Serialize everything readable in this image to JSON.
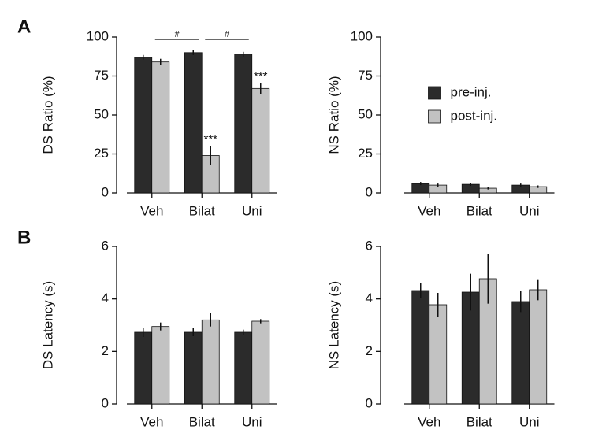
{
  "chart_data": [
    {
      "type": "bar",
      "panel_label": "A",
      "ylabel": "DS Ratio (%)",
      "categories": [
        "Veh",
        "Bilat",
        "Uni"
      ],
      "series": [
        {
          "color": "#2b2b2b",
          "values": [
            87,
            90,
            89
          ],
          "errors": [
            1.5,
            1.5,
            1.5
          ]
        },
        {
          "color": "#c2c2c2",
          "values": [
            84,
            24,
            67
          ],
          "errors": [
            2,
            6,
            3.5
          ],
          "annotations": [
            null,
            "***",
            "***"
          ]
        }
      ],
      "brackets": [
        {
          "text": "#",
          "from": "Veh",
          "to": "Bilat"
        },
        {
          "text": "#",
          "from": "Bilat",
          "to": "Uni"
        }
      ],
      "ylim": [
        0,
        100
      ],
      "yticks": [
        0,
        25,
        50,
        75,
        100
      ]
    },
    {
      "type": "bar",
      "ylabel": "NS Ratio (%)",
      "categories": [
        "Veh",
        "Bilat",
        "Uni"
      ],
      "series": [
        {
          "name": "pre-inj.",
          "color": "#2b2b2b",
          "values": [
            6,
            5.5,
            5
          ],
          "errors": [
            1,
            1,
            1
          ]
        },
        {
          "name": "post-inj.",
          "color": "#c2c2c2",
          "values": [
            5,
            3,
            4
          ],
          "errors": [
            1,
            0.8,
            0.8
          ]
        }
      ],
      "legend": "upper right",
      "ylim": [
        0,
        100
      ],
      "yticks": [
        0,
        25,
        50,
        75,
        100
      ]
    },
    {
      "type": "bar",
      "panel_label": "B",
      "ylabel": "DS Latency (s)",
      "categories": [
        "Veh",
        "Bilat",
        "Uni"
      ],
      "series": [
        {
          "color": "#2b2b2b",
          "values": [
            2.73,
            2.73,
            2.73
          ],
          "errors": [
            0.18,
            0.15,
            0.1
          ]
        },
        {
          "color": "#c2c2c2",
          "values": [
            2.95,
            3.2,
            3.15
          ],
          "errors": [
            0.15,
            0.25,
            0.08
          ]
        }
      ],
      "ylim": [
        0,
        6
      ],
      "yticks": [
        0,
        2,
        4,
        6
      ]
    },
    {
      "type": "bar",
      "ylabel": "NS Latency (s)",
      "categories": [
        "Veh",
        "Bilat",
        "Uni"
      ],
      "series": [
        {
          "color": "#2b2b2b",
          "values": [
            4.32,
            4.26,
            3.9
          ],
          "errors": [
            0.3,
            0.7,
            0.4
          ]
        },
        {
          "color": "#c2c2c2",
          "values": [
            3.78,
            4.77,
            4.35
          ],
          "errors": [
            0.45,
            0.95,
            0.4
          ]
        }
      ],
      "ylim": [
        0,
        6
      ],
      "yticks": [
        0,
        2,
        4,
        6
      ]
    }
  ]
}
